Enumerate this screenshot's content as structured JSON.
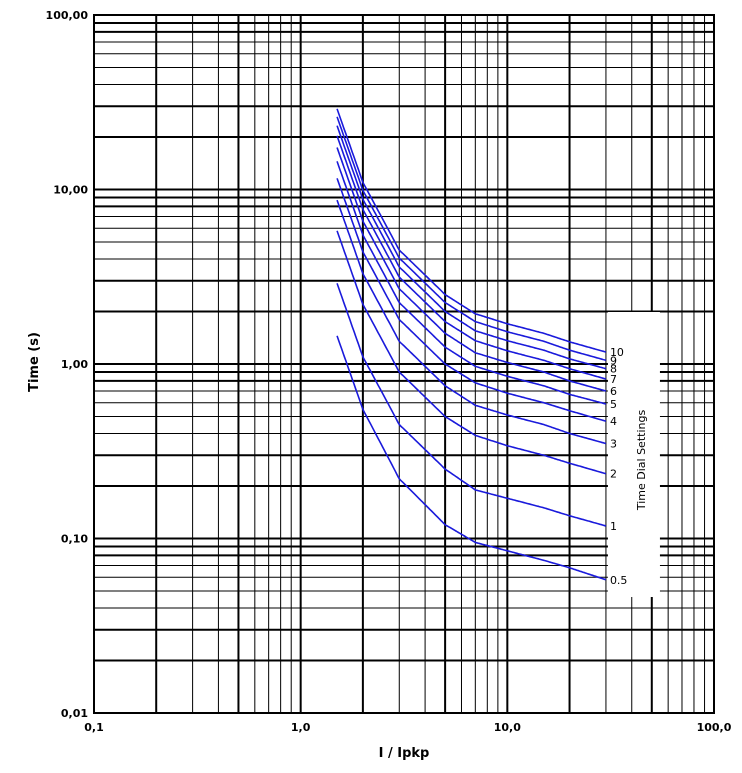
{
  "chart_data": {
    "type": "line",
    "xscale": "log",
    "yscale": "log",
    "xlim": [
      0.1,
      100
    ],
    "ylim": [
      0.01,
      100
    ],
    "xlabel": "I / Ipkp",
    "ylabel": "Time (s)",
    "grid": true,
    "line_color": "#1a1adb",
    "x_tick_labels": [
      "0,1",
      "1,0",
      "10,0",
      "100,0"
    ],
    "y_tick_labels": [
      "0,01",
      "0,10",
      "1,00",
      "10,00",
      "100,00"
    ],
    "legend_title": "Time Dial Settings",
    "x": [
      1.5,
      2,
      3,
      5,
      7,
      10,
      15,
      20,
      30
    ],
    "series": [
      {
        "name": "0.5",
        "values": [
          1.45,
          0.55,
          0.22,
          0.12,
          0.095,
          0.085,
          0.075,
          0.068,
          0.058
        ]
      },
      {
        "name": "1",
        "values": [
          2.9,
          1.1,
          0.45,
          0.25,
          0.19,
          0.17,
          0.15,
          0.135,
          0.118
        ]
      },
      {
        "name": "2",
        "values": [
          5.8,
          2.2,
          0.9,
          0.5,
          0.39,
          0.34,
          0.3,
          0.27,
          0.235
        ]
      },
      {
        "name": "3",
        "values": [
          8.7,
          3.3,
          1.35,
          0.75,
          0.58,
          0.51,
          0.45,
          0.4,
          0.35
        ]
      },
      {
        "name": "4",
        "values": [
          11.6,
          4.4,
          1.8,
          1.0,
          0.78,
          0.68,
          0.6,
          0.54,
          0.47
        ]
      },
      {
        "name": "5",
        "values": [
          14.5,
          5.5,
          2.25,
          1.25,
          0.97,
          0.85,
          0.75,
          0.67,
          0.59
        ]
      },
      {
        "name": "6",
        "values": [
          17.4,
          6.6,
          2.7,
          1.5,
          1.16,
          1.02,
          0.9,
          0.8,
          0.7
        ]
      },
      {
        "name": "7",
        "values": [
          20.3,
          7.7,
          3.15,
          1.75,
          1.36,
          1.19,
          1.05,
          0.94,
          0.82
        ]
      },
      {
        "name": "8",
        "values": [
          23.2,
          8.8,
          3.6,
          2.0,
          1.55,
          1.36,
          1.2,
          1.07,
          0.94
        ]
      },
      {
        "name": "9",
        "values": [
          26.1,
          9.9,
          4.05,
          2.25,
          1.75,
          1.53,
          1.35,
          1.2,
          1.05
        ]
      },
      {
        "name": "10",
        "values": [
          29.0,
          11.0,
          4.5,
          2.5,
          1.94,
          1.7,
          1.5,
          1.34,
          1.17
        ]
      }
    ],
    "curve_labels": [
      "0.5",
      "1",
      "2",
      "3",
      "4",
      "5",
      "6",
      "7",
      "8",
      "9",
      "10"
    ]
  }
}
